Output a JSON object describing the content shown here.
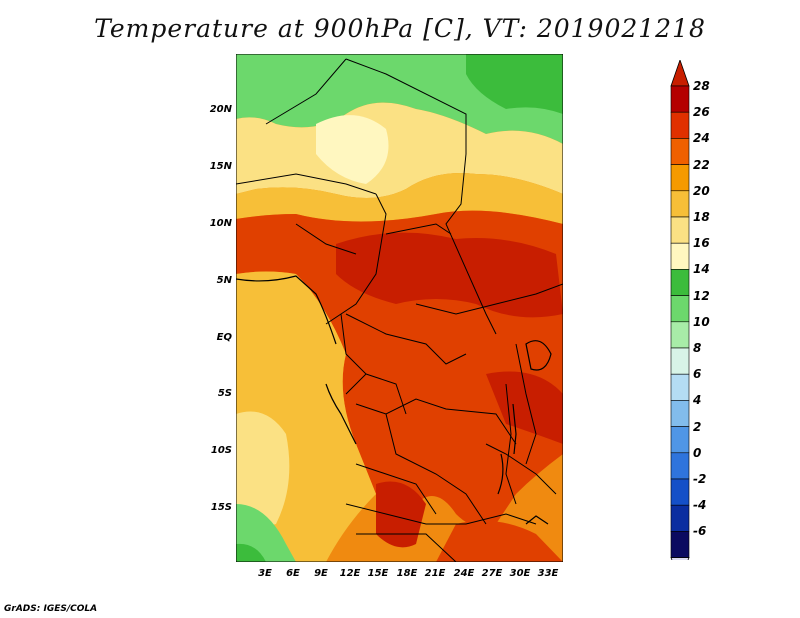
{
  "title": "Temperature at 900hPa [C], VT: 2019021218",
  "credit": "GrADS: IGES/COLA",
  "y_ticks": [
    "20N",
    "15N",
    "10N",
    "5N",
    "EQ",
    "5S",
    "10S",
    "15S"
  ],
  "x_ticks": [
    "3E",
    "6E",
    "9E",
    "12E",
    "15E",
    "18E",
    "21E",
    "24E",
    "27E",
    "30E",
    "33E"
  ],
  "colorbar": {
    "labels": [
      "28",
      "26",
      "24",
      "22",
      "20",
      "18",
      "16",
      "14",
      "12",
      "10",
      "8",
      "6",
      "4",
      "2",
      "0",
      "-2",
      "-4",
      "-6"
    ],
    "colors": [
      "#b40000",
      "#e03000",
      "#f06000",
      "#f59a00",
      "#f7bf38",
      "#fbe184",
      "#fff7c0",
      "#3cbc3c",
      "#6cd86c",
      "#a8eca8",
      "#d8f4e8",
      "#b4dcf4",
      "#82bcec",
      "#5096e6",
      "#2f74dc",
      "#1450c8",
      "#0a2ea0",
      "#0a0a60"
    ],
    "top_arrow_color": "#c81e00",
    "bottom_arrow_color": "#dcdcf0"
  }
}
